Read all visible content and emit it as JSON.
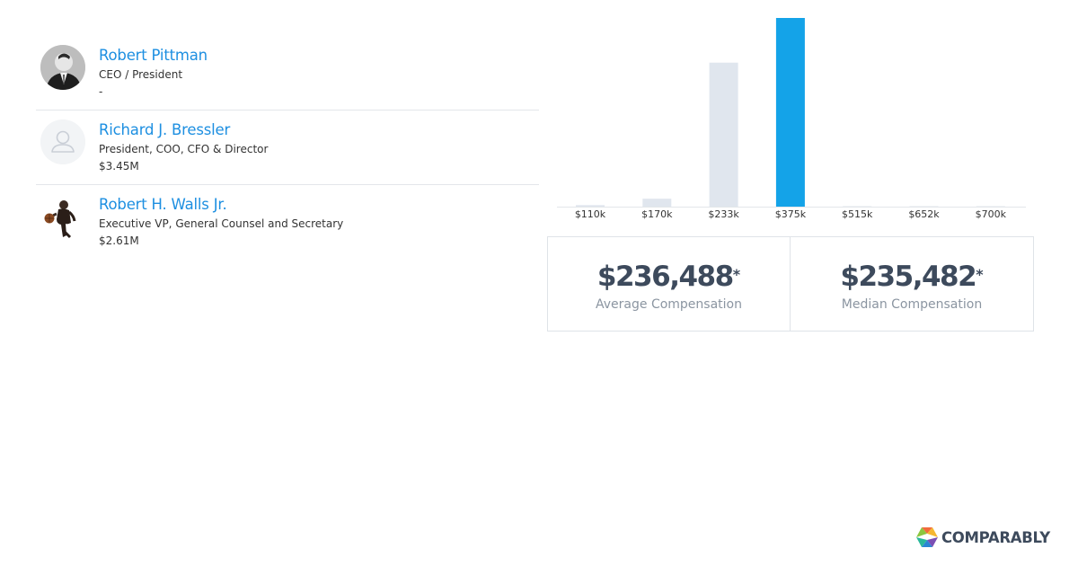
{
  "executives": [
    {
      "name": "Robert Pittman",
      "title": "CEO / President",
      "compensation": "-",
      "avatar": "photo-portrait"
    },
    {
      "name": "Richard J. Bressler",
      "title": "President, COO, CFO & Director",
      "compensation": "$3.45M",
      "avatar": "person-placeholder-icon"
    },
    {
      "name": "Robert H. Walls Jr.",
      "title": "Executive VP, General Counsel and Secretary",
      "compensation": "$2.61M",
      "avatar": "photo-basketball-player"
    }
  ],
  "chart_data": {
    "type": "bar",
    "categories": [
      "$110k",
      "$170k",
      "$233k",
      "$375k",
      "$515k",
      "$652k",
      "$700k"
    ],
    "values": [
      1.5,
      8,
      145,
      190,
      0.3,
      0.3,
      0.3
    ],
    "highlight_index": 3,
    "colors": {
      "default": "#e0e6ee",
      "highlight": "#14a3e8"
    },
    "xlabel": "",
    "ylabel": "",
    "ylim": [
      0,
      190
    ],
    "grid": false
  },
  "stats": {
    "average": {
      "value": "$236,488",
      "asterisk": "*",
      "label": "Average Compensation"
    },
    "median": {
      "value": "$235,482",
      "asterisk": "*",
      "label": "Median Compensation"
    }
  },
  "brand": {
    "name": "COMPARABLY",
    "text_color": "#3d4a5c",
    "link_color": "#1d8fe1"
  }
}
